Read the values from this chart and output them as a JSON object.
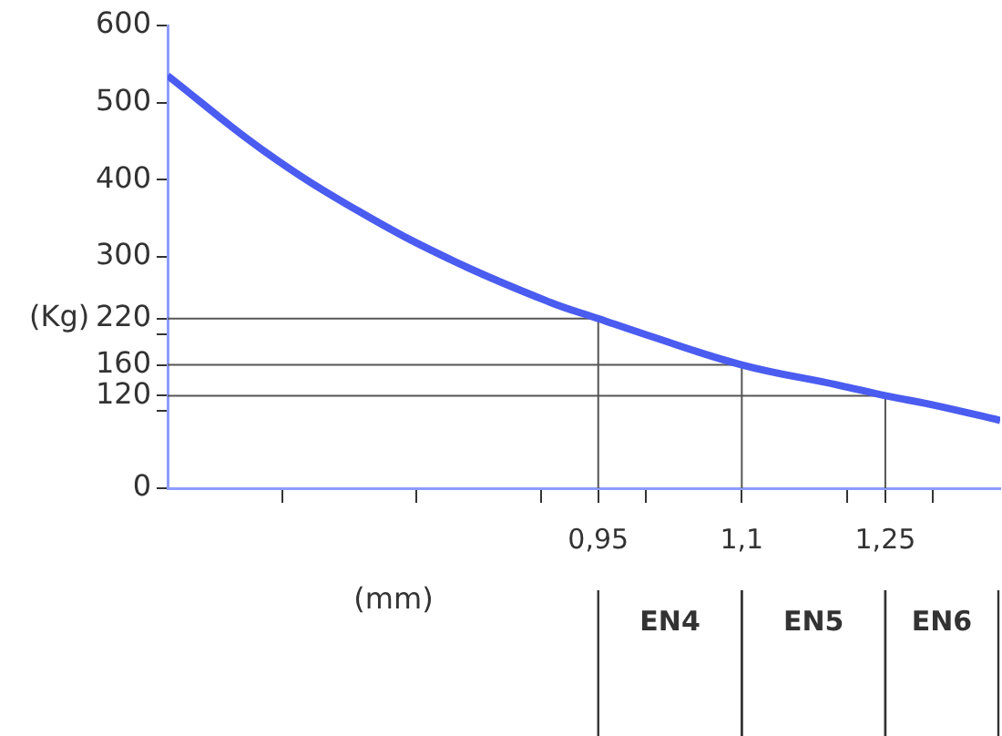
{
  "chart_data": {
    "type": "line",
    "xlabel": "(mm)",
    "ylabel": "(Kg)",
    "x": [
      0.5,
      0.6,
      0.7,
      0.8,
      0.9,
      0.95,
      1.0,
      1.1,
      1.2,
      1.25,
      1.3,
      1.37
    ],
    "series": [
      {
        "color": "#4b5cf0",
        "values": [
          535,
          438,
          359,
          294,
          241,
          220,
          199,
          160,
          134,
          120,
          108,
          88
        ]
      },
      {
        "color": "#555555",
        "x": [
          0.5,
          0.95,
          0.95
        ],
        "values": [
          220,
          220,
          0
        ]
      },
      {
        "color": "#555555",
        "x": [
          0.5,
          1.1,
          1.1
        ],
        "values": [
          160,
          160,
          0
        ]
      },
      {
        "color": "#555555",
        "x": [
          0.5,
          1.25,
          1.25
        ],
        "values": [
          120,
          120,
          0
        ]
      }
    ],
    "xlim": [
      0.5,
      1.37
    ],
    "xticks": [
      {
        "value": 0.62,
        "label": null
      },
      {
        "value": 0.76,
        "label": null
      },
      {
        "value": 0.89,
        "label": null
      },
      {
        "value": 0.95,
        "label": "0,95"
      },
      {
        "value": 1.0,
        "label": null
      },
      {
        "value": 1.1,
        "label": "1,1"
      },
      {
        "value": 1.21,
        "label": null
      },
      {
        "value": 1.25,
        "label": "1,25"
      },
      {
        "value": 1.3,
        "label": null
      }
    ],
    "ylim": [
      0,
      600
    ],
    "yticks": [
      0,
      {
        "value": 100,
        "label": null
      },
      120,
      160,
      {
        "value": 200,
        "label": null
      },
      220,
      300,
      400,
      500,
      600
    ],
    "annotations": [
      "EN4",
      "EN5",
      "EN6"
    ],
    "grid": false,
    "legend": false,
    "marker": "none",
    "line_style": "solid"
  }
}
